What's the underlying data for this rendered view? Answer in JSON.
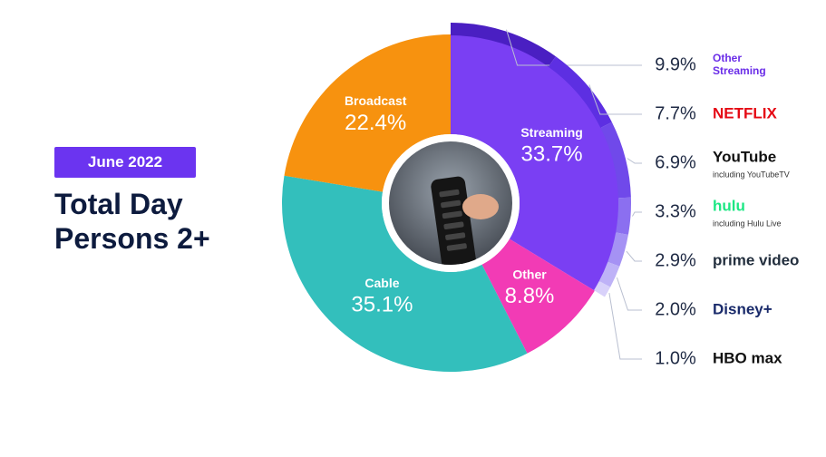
{
  "chart_data": {
    "type": "pie",
    "badge": "June 2022",
    "title": "Total Day Persons 2+",
    "categories": [
      "Streaming",
      "Other",
      "Cable",
      "Broadcast"
    ],
    "values": [
      33.7,
      8.8,
      35.1,
      22.4
    ],
    "value_labels": [
      "33.7%",
      "8.8%",
      "35.1%",
      "22.4%"
    ],
    "colors": [
      "#7a3ff3",
      "#f23bb5",
      "#33bfbc",
      "#f7920f"
    ],
    "breakdown": {
      "categories": [
        "Other Streaming",
        "NETFLIX",
        "YouTube",
        "hulu",
        "prime video",
        "Disney+",
        "HBO max"
      ],
      "notes": [
        null,
        null,
        "including YouTubeTV",
        "including Hulu Live",
        null,
        null,
        null
      ],
      "values": [
        9.9,
        7.7,
        6.9,
        3.3,
        2.9,
        2.0,
        1.0
      ],
      "value_labels": [
        "9.9%",
        "7.7%",
        "6.9%",
        "3.3%",
        "2.9%",
        "2.0%",
        "1.0%"
      ],
      "colors": [
        "#4a1fc2",
        "#5d2fe2",
        "#7049ea",
        "#8b6ff0",
        "#a592f4",
        "#beb2f7",
        "#d8d1fa"
      ],
      "label_colors": [
        "#6b2ee8",
        "#e50914",
        "#111111",
        "#1ce783",
        "#232f3e",
        "#1a2b6b",
        "#111111"
      ]
    }
  }
}
